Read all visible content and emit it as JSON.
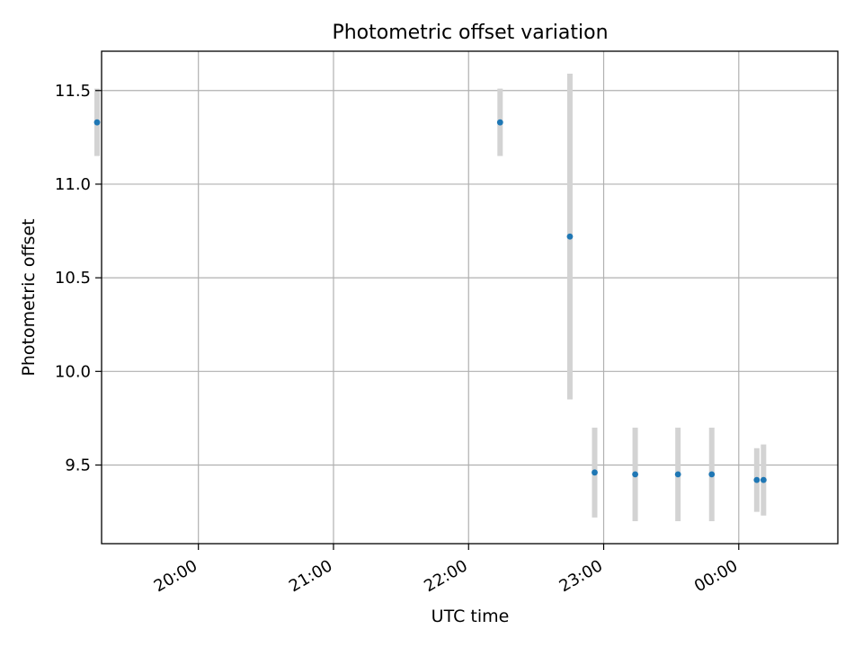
{
  "chart_data": {
    "type": "scatter",
    "title": "Photometric offset variation",
    "xlabel": "UTC time",
    "ylabel": "Photometric offset",
    "x_unit": "UTC time (HH:MM)",
    "xlim": [
      "19:17",
      "00:44"
    ],
    "ylim": [
      9.08,
      11.71
    ],
    "x_ticks": [
      "20:00",
      "21:00",
      "22:00",
      "23:00",
      "00:00"
    ],
    "y_ticks": [
      "9.5",
      "10.0",
      "10.5",
      "11.0",
      "11.5"
    ],
    "grid": true,
    "point_color": "#1f77b4",
    "errorbar_color": "#d3d3d3",
    "points": [
      {
        "x": "19:15",
        "y": 11.33,
        "yerr": 0.18
      },
      {
        "x": "22:14",
        "y": 11.33,
        "yerr": 0.18
      },
      {
        "x": "22:45",
        "y": 10.72,
        "yerr": 0.87
      },
      {
        "x": "22:56",
        "y": 9.46,
        "yerr": 0.24
      },
      {
        "x": "23:14",
        "y": 9.45,
        "yerr": 0.25
      },
      {
        "x": "23:33",
        "y": 9.45,
        "yerr": 0.25
      },
      {
        "x": "23:48",
        "y": 9.45,
        "yerr": 0.25
      },
      {
        "x": "00:08",
        "y": 9.42,
        "yerr": 0.17
      },
      {
        "x": "00:11",
        "y": 9.42,
        "yerr": 0.19
      }
    ]
  }
}
